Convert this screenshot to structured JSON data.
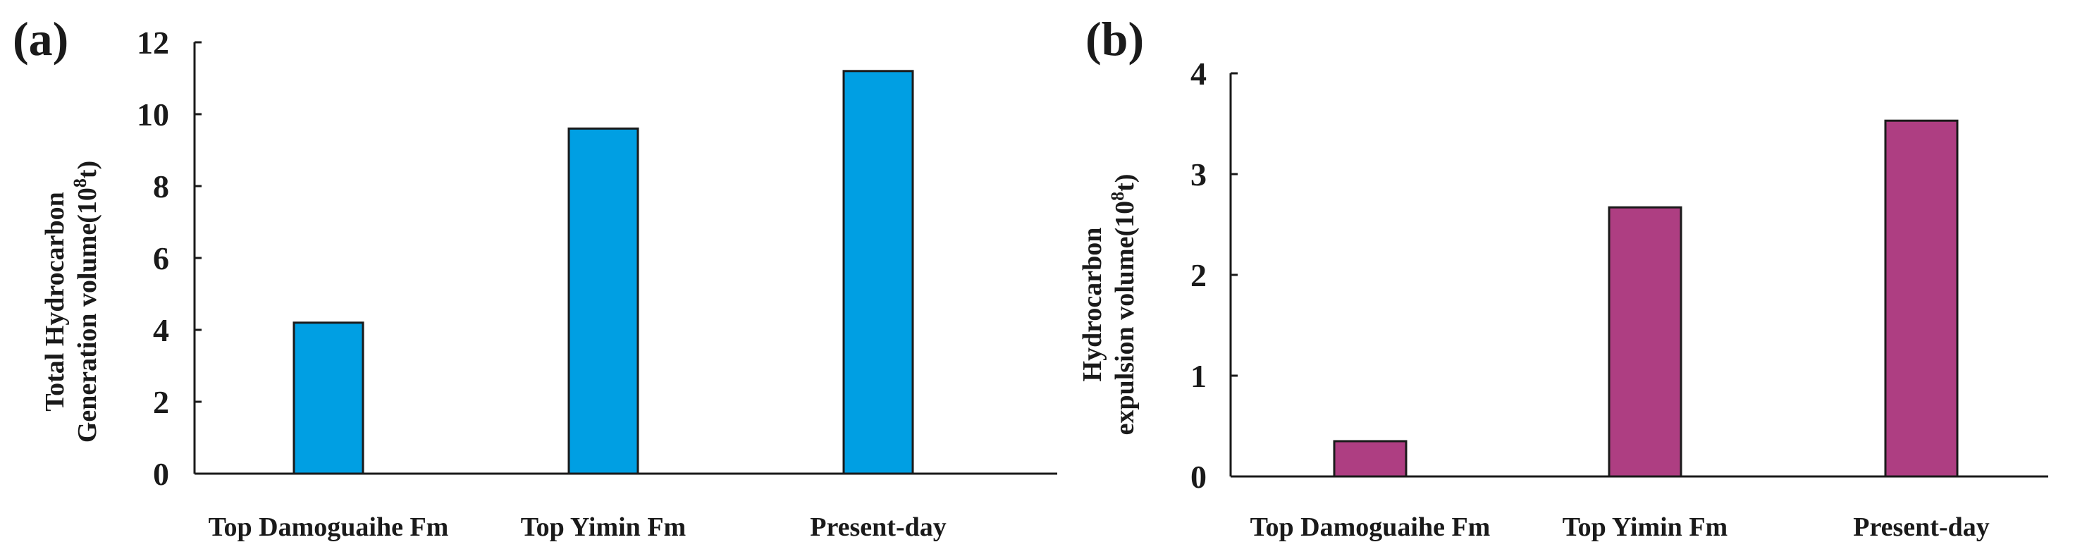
{
  "chart_data": [
    {
      "panel": "(a)",
      "type": "bar",
      "categories": [
        "Top Damoguaihe Fm",
        "Top Yimin Fm",
        "Present-day"
      ],
      "values": [
        4.2,
        9.6,
        11.2
      ],
      "ylabel_line1": "Total Hydrocarbon",
      "ylabel_line2_prefix": "Generation volume(10",
      "ylabel_sup": "8",
      "ylabel_suffix": "t)",
      "ylim": [
        0,
        12
      ],
      "yticks": [
        0,
        2,
        4,
        6,
        8,
        10,
        12
      ],
      "color": "#009fe3"
    },
    {
      "panel": "(b)",
      "type": "bar",
      "categories": [
        "Top Damoguaihe Fm",
        "Top Yimin Fm",
        "Present-day"
      ],
      "values": [
        0.35,
        2.67,
        3.53
      ],
      "ylabel_line1": "Hydrocarbon",
      "ylabel_line2_prefix": "expulsion volume(10",
      "ylabel_sup": "8",
      "ylabel_suffix": "t)",
      "ylim": [
        0,
        4
      ],
      "yticks": [
        0,
        1,
        2,
        3,
        4
      ],
      "color": "#ae3e82"
    }
  ]
}
